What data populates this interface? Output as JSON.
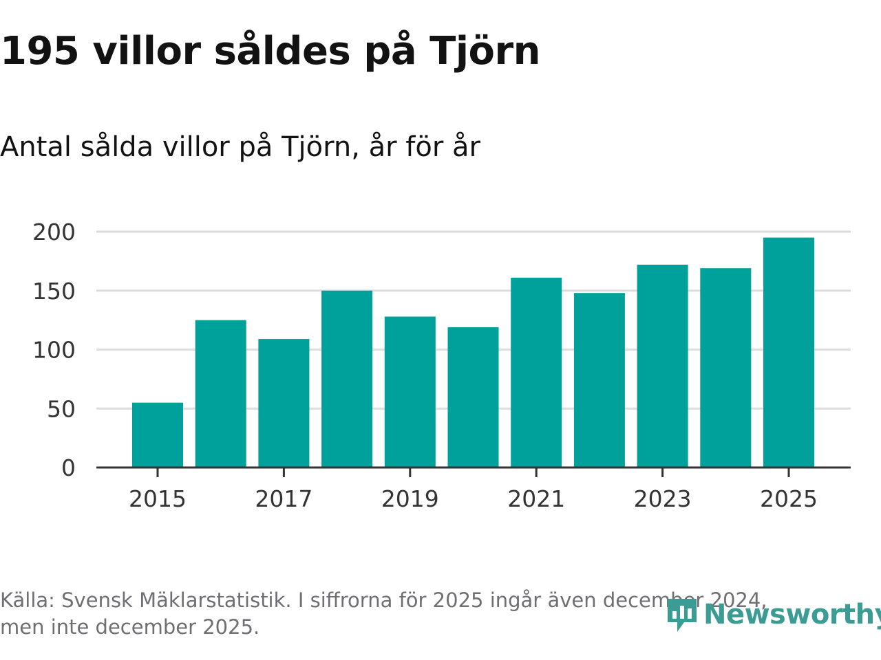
{
  "header": {
    "title": "195 villor såldes på Tjörn",
    "subtitle": "Antal sålda villor på Tjörn, år för år"
  },
  "footer": {
    "source_line1": "Källa: Svensk Mäklarstatistik. I siffrorna för 2025 ingår även december 2024,",
    "source_line2": "men inte december 2025.",
    "brand": "Newsworthy"
  },
  "colors": {
    "bar": "#00a19a",
    "grid": "#dddddd",
    "axis": "#333333",
    "brand": "#3a9c92"
  },
  "chart_data": {
    "type": "bar",
    "title": "195 villor såldes på Tjörn",
    "subtitle": "Antal sålda villor på Tjörn, år för år",
    "xlabel": "",
    "ylabel": "",
    "categories": [
      2015,
      2016,
      2017,
      2018,
      2019,
      2020,
      2021,
      2022,
      2023,
      2024,
      2025
    ],
    "values": [
      55,
      125,
      109,
      150,
      128,
      119,
      161,
      148,
      172,
      169,
      195
    ],
    "ylim": [
      0,
      200
    ],
    "yticks": [
      0,
      50,
      100,
      150,
      200
    ],
    "xtick_labels": [
      "2015",
      "2017",
      "2019",
      "2021",
      "2023",
      "2025"
    ],
    "grid": true,
    "legend": "none"
  }
}
